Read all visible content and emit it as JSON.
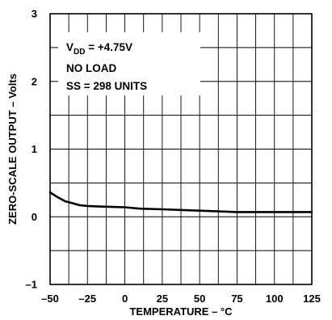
{
  "chart_data": {
    "type": "line",
    "title": "",
    "xlabel": "TEMPERATURE – °C",
    "ylabel": "ZERO-SCALE OUTPUT – Volts",
    "xlim": [
      -50,
      125
    ],
    "ylim": [
      -1,
      3
    ],
    "x_ticks": [
      "–50",
      "–25",
      "0",
      "25",
      "50",
      "75",
      "100",
      "125"
    ],
    "y_ticks": [
      "–1",
      "0",
      "1",
      "2",
      "3"
    ],
    "x_tick_values": [
      -50,
      -25,
      0,
      25,
      50,
      75,
      100,
      125
    ],
    "y_tick_values": [
      -1,
      0,
      1,
      2,
      3
    ],
    "grid": true,
    "annotations": {
      "vdd_prefix": "V",
      "vdd_sub": "DD",
      "vdd_suffix": " = +4.75V",
      "line2": "NO LOAD",
      "line3": "SS = 298 UNITS"
    },
    "series": [
      {
        "x": [
          -50,
          -45,
          -40,
          -35,
          -30,
          -25,
          -15,
          0,
          10,
          25,
          50,
          75,
          100,
          125
        ],
        "values": [
          0.36,
          0.29,
          0.23,
          0.2,
          0.17,
          0.16,
          0.15,
          0.14,
          0.12,
          0.11,
          0.09,
          0.07,
          0.07,
          0.07
        ]
      }
    ]
  }
}
